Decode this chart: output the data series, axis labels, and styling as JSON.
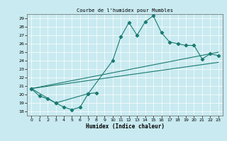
{
  "title": "Courbe de l'humidex pour Mumbles",
  "xlabel": "Humidex (Indice chaleur)",
  "bg_color": "#c8eaf0",
  "grid_color": "#ffffff",
  "line_color": "#1a7a70",
  "xlim": [
    -0.5,
    23.5
  ],
  "ylim": [
    17.5,
    29.5
  ],
  "xticks": [
    0,
    1,
    2,
    3,
    4,
    5,
    6,
    7,
    8,
    9,
    10,
    11,
    12,
    13,
    14,
    15,
    16,
    17,
    18,
    19,
    20,
    21,
    22,
    23
  ],
  "yticks": [
    18,
    19,
    20,
    21,
    22,
    23,
    24,
    25,
    26,
    27,
    28,
    29
  ],
  "curve1_x": [
    0,
    1,
    2,
    3,
    4,
    5,
    6,
    7,
    8
  ],
  "curve1_y": [
    20.7,
    19.8,
    19.5,
    19.0,
    18.5,
    18.2,
    18.5,
    20.1,
    20.2
  ],
  "curve2_x": [
    0,
    3,
    7,
    10,
    11,
    12,
    13,
    14,
    15,
    16,
    17,
    18,
    19,
    20,
    21,
    22,
    23
  ],
  "curve2_y": [
    20.7,
    19.0,
    20.1,
    24.0,
    26.8,
    28.5,
    27.0,
    28.6,
    29.3,
    27.3,
    26.2,
    26.0,
    25.8,
    25.8,
    24.2,
    24.8,
    24.6
  ],
  "trend1_x": [
    0,
    23
  ],
  "trend1_y": [
    20.7,
    25.0
  ],
  "trend2_x": [
    0,
    23
  ],
  "trend2_y": [
    20.7,
    23.8
  ]
}
